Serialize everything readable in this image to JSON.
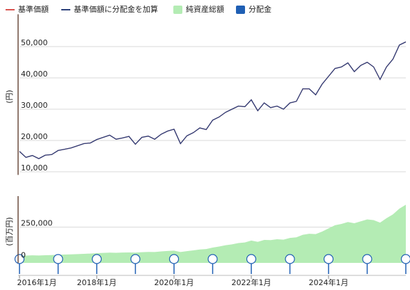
{
  "chart_data": [
    {
      "type": "line",
      "y_label": "(円)",
      "x": [
        "2016-01",
        "2016-03",
        "2016-05",
        "2016-07",
        "2016-09",
        "2016-11",
        "2017-01",
        "2017-03",
        "2017-05",
        "2017-07",
        "2017-09",
        "2017-11",
        "2018-01",
        "2018-03",
        "2018-05",
        "2018-07",
        "2018-09",
        "2018-11",
        "2019-01",
        "2019-03",
        "2019-05",
        "2019-07",
        "2019-09",
        "2019-11",
        "2020-01",
        "2020-03",
        "2020-05",
        "2020-07",
        "2020-09",
        "2020-11",
        "2021-01",
        "2021-03",
        "2021-05",
        "2021-07",
        "2021-09",
        "2021-11",
        "2022-01",
        "2022-03",
        "2022-05",
        "2022-07",
        "2022-09",
        "2022-11",
        "2023-01",
        "2023-03",
        "2023-05",
        "2023-07",
        "2023-09",
        "2023-11",
        "2024-01",
        "2024-03",
        "2024-05",
        "2024-07",
        "2024-09",
        "2024-11",
        "2025-01",
        "2025-03",
        "2025-05",
        "2025-07",
        "2025-09",
        "2025-11",
        "2026-01"
      ],
      "xlim": [
        "2016-01",
        "2026-01"
      ],
      "series": [
        {
          "name": "基準価額",
          "color": "#d9534f",
          "values": [
            16500,
            14600,
            15200,
            14200,
            15300,
            15500,
            16800,
            17200,
            17600,
            18300,
            19000,
            19200,
            20300,
            21000,
            21700,
            20400,
            20800,
            21300,
            18800,
            21000,
            21400,
            20400,
            22000,
            23000,
            23600,
            19000,
            21500,
            22500,
            24000,
            23500,
            26500,
            27500,
            29000,
            30000,
            31000,
            30800,
            33000,
            29500,
            32000,
            30500,
            31000,
            30000,
            32000,
            32500,
            36500,
            36500,
            34600,
            38000,
            40500,
            43000,
            43500,
            44800,
            42000,
            44000,
            45000,
            43500,
            39500,
            43500,
            46000,
            50500,
            51500
          ]
        },
        {
          "name": "基準価額に分配金を加算",
          "color": "#2b3f7a",
          "values": [
            16500,
            14600,
            15200,
            14200,
            15300,
            15500,
            16800,
            17200,
            17600,
            18300,
            19000,
            19200,
            20300,
            21000,
            21700,
            20400,
            20800,
            21300,
            18800,
            21000,
            21400,
            20400,
            22000,
            23000,
            23600,
            19000,
            21500,
            22500,
            24000,
            23500,
            26500,
            27500,
            29000,
            30000,
            31000,
            30800,
            33000,
            29500,
            32000,
            30500,
            31000,
            30000,
            32000,
            32500,
            36500,
            36500,
            34600,
            38000,
            40500,
            43000,
            43500,
            44800,
            42000,
            44000,
            45000,
            43500,
            39500,
            43500,
            46000,
            50500,
            51500
          ]
        }
      ],
      "ylim": [
        9000,
        59000
      ],
      "yticks": [
        {
          "value": 10000,
          "label": "10,000"
        },
        {
          "value": 20000,
          "label": "20,000"
        },
        {
          "value": 30000,
          "label": "30,000"
        },
        {
          "value": 40000,
          "label": "40,000"
        },
        {
          "value": 50000,
          "label": "50,000"
        }
      ],
      "grid": true
    },
    {
      "type": "area",
      "y_label": "(百万円)",
      "x": [
        "2016-01",
        "2016-03",
        "2016-05",
        "2016-07",
        "2016-09",
        "2016-11",
        "2017-01",
        "2017-03",
        "2017-05",
        "2017-07",
        "2017-09",
        "2017-11",
        "2018-01",
        "2018-03",
        "2018-05",
        "2018-07",
        "2018-09",
        "2018-11",
        "2019-01",
        "2019-03",
        "2019-05",
        "2019-07",
        "2019-09",
        "2019-11",
        "2020-01",
        "2020-03",
        "2020-05",
        "2020-07",
        "2020-09",
        "2020-11",
        "2021-01",
        "2021-03",
        "2021-05",
        "2021-07",
        "2021-09",
        "2021-11",
        "2022-01",
        "2022-03",
        "2022-05",
        "2022-07",
        "2022-09",
        "2022-11",
        "2023-01",
        "2023-03",
        "2023-05",
        "2023-07",
        "2023-09",
        "2023-11",
        "2024-01",
        "2024-03",
        "2024-05",
        "2024-07",
        "2024-09",
        "2024-11",
        "2025-01",
        "2025-03",
        "2025-05",
        "2025-07",
        "2025-09",
        "2025-11",
        "2026-01"
      ],
      "xlim": [
        "2016-01",
        "2026-01"
      ],
      "series": [
        {
          "name": "純資産総額",
          "color": "#b4ecb4",
          "values": [
            28000,
            27000,
            29000,
            28000,
            30000,
            31000,
            33000,
            35000,
            37000,
            39000,
            41000,
            43000,
            46000,
            48000,
            50000,
            49000,
            51000,
            52000,
            50000,
            54000,
            56000,
            55000,
            60000,
            63000,
            66000,
            55000,
            62000,
            68000,
            75000,
            78000,
            90000,
            98000,
            108000,
            115000,
            125000,
            130000,
            145000,
            135000,
            150000,
            148000,
            155000,
            152000,
            165000,
            170000,
            190000,
            198000,
            195000,
            215000,
            240000,
            265000,
            275000,
            290000,
            280000,
            295000,
            310000,
            305000,
            285000,
            320000,
            350000,
            395000,
            425000
          ]
        },
        {
          "name": "分配金",
          "color": "#1f5fb4",
          "x": [
            "2016-01",
            "2017-01",
            "2018-01",
            "2019-01",
            "2020-01",
            "2021-01",
            "2022-01",
            "2023-01",
            "2024-01",
            "2025-01",
            "2026-01"
          ],
          "values": [
            0,
            0,
            0,
            0,
            0,
            0,
            0,
            0,
            0,
            0,
            0
          ]
        }
      ],
      "ylim": [
        -30000,
        460000
      ],
      "yticks": [
        0,
        {
          "value": 250000,
          "label": "250,000"
        }
      ],
      "xticks": [
        {
          "value": "2016-01",
          "label": "2016年1月"
        },
        {
          "value": "2018-01",
          "label": "2018年1月"
        },
        {
          "value": "2020-01",
          "label": "2020年1月"
        },
        {
          "value": "2022-01",
          "label": "2022年1月"
        },
        {
          "value": "2024-01",
          "label": "2024年1月"
        }
      ],
      "grid": true
    }
  ]
}
